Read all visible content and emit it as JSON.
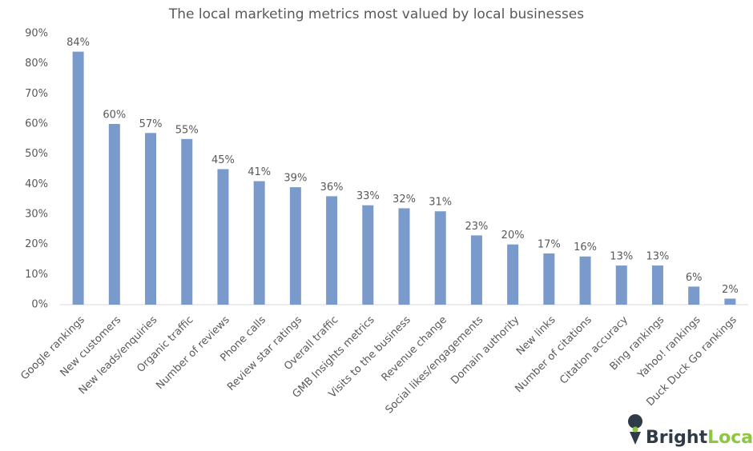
{
  "chart_data": {
    "type": "bar",
    "title": "The local marketing metrics most valued by local businesses",
    "categories": [
      "Google rankings",
      "New customers",
      "New leads/enquiries",
      "Organic traffic",
      "Number of reviews",
      "Phone calls",
      "Review star ratings",
      "Overall traffic",
      "GMB Insights metrics",
      "Visits to the business",
      "Revenue change",
      "Social likes/engagements",
      "Domain authority",
      "New links",
      "Number of citations",
      "Citation accuracy",
      "Bing rankings",
      "Yahoo! rankings",
      "Duck Duck Go rankings"
    ],
    "values": [
      84,
      60,
      57,
      55,
      45,
      41,
      39,
      36,
      33,
      32,
      31,
      23,
      20,
      17,
      16,
      13,
      13,
      6,
      2
    ],
    "value_labels": [
      "84%",
      "60%",
      "57%",
      "55%",
      "45%",
      "41%",
      "39%",
      "36%",
      "33%",
      "32%",
      "31%",
      "23%",
      "20%",
      "17%",
      "16%",
      "13%",
      "13%",
      "6%",
      "2%"
    ],
    "color": "#7b9acc",
    "ylim": [
      0,
      90
    ],
    "yticks": [
      {
        "value": 0,
        "label": "0%"
      },
      {
        "value": 10,
        "label": "10%"
      },
      {
        "value": 20,
        "label": "20%"
      },
      {
        "value": 30,
        "label": "30%"
      },
      {
        "value": 40,
        "label": "40%"
      },
      {
        "value": 50,
        "label": "50%"
      },
      {
        "value": 60,
        "label": "60%"
      },
      {
        "value": 70,
        "label": "70%"
      },
      {
        "value": 80,
        "label": "80%"
      },
      {
        "value": 90,
        "label": "90%"
      }
    ],
    "grid": false
  },
  "brand": {
    "first": "Bright",
    "second": "Local"
  }
}
